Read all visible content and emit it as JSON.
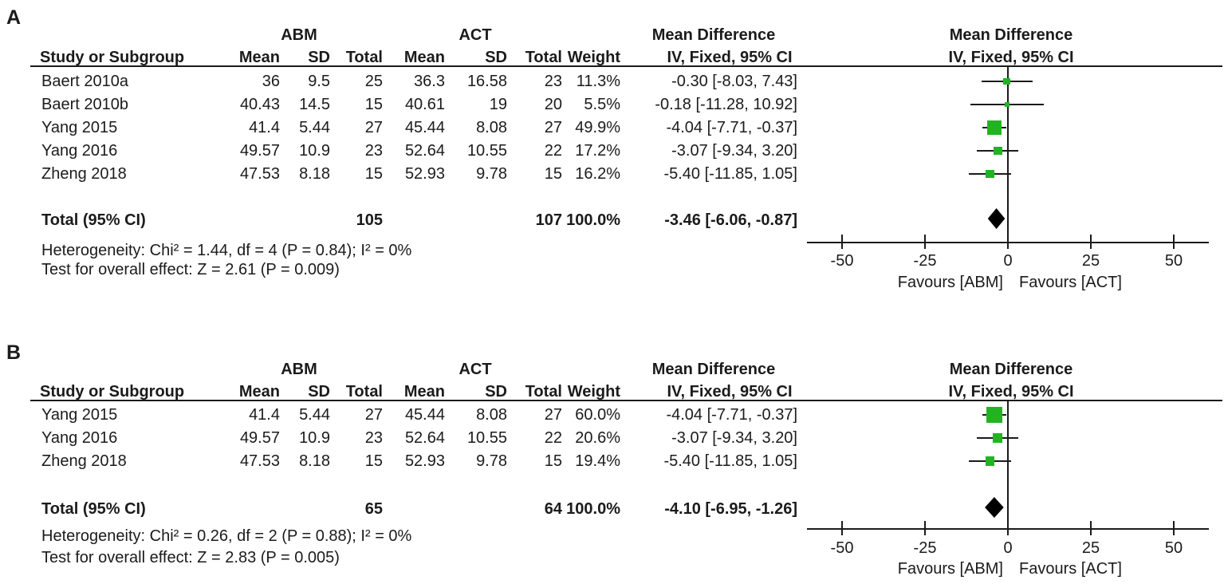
{
  "figure": {
    "panel_labels": [
      "A",
      "B"
    ],
    "marker_color": "#21b421",
    "diamond_color": "#000000",
    "line_color": "#1b1b1b"
  },
  "chart_data": [
    {
      "type": "forest",
      "panel_label": "A",
      "group_headers": [
        "ABM",
        "ACT"
      ],
      "columns": [
        "Study or Subgroup",
        "Mean",
        "SD",
        "Total",
        "Mean",
        "SD",
        "Total",
        "Weight",
        "IV, Fixed, 95% CI"
      ],
      "effect_col_header": "Mean Difference",
      "effect_col_subheader": "IV, Fixed, 95% CI",
      "plot_header": "Mean Difference",
      "plot_subheader": "IV, Fixed, 95% CI",
      "studies": [
        {
          "study": "Baert 2010a",
          "mean1": "36",
          "sd1": "9.5",
          "total1": "25",
          "mean2": "36.3",
          "sd2": "16.58",
          "total2": "23",
          "weight": "11.3%",
          "weight_pct": 11.3,
          "md": -0.3,
          "ci_low": -8.03,
          "ci_high": 7.43,
          "effect_label": "-0.30 [-8.03, 7.43]"
        },
        {
          "study": "Baert 2010b",
          "mean1": "40.43",
          "sd1": "14.5",
          "total1": "15",
          "mean2": "40.61",
          "sd2": "19",
          "total2": "20",
          "weight": "5.5%",
          "weight_pct": 5.5,
          "md": -0.18,
          "ci_low": -11.28,
          "ci_high": 10.92,
          "effect_label": "-0.18 [-11.28, 10.92]"
        },
        {
          "study": "Yang 2015",
          "mean1": "41.4",
          "sd1": "5.44",
          "total1": "27",
          "mean2": "45.44",
          "sd2": "8.08",
          "total2": "27",
          "weight": "49.9%",
          "weight_pct": 49.9,
          "md": -4.04,
          "ci_low": -7.71,
          "ci_high": -0.37,
          "effect_label": "-4.04 [-7.71, -0.37]"
        },
        {
          "study": "Yang 2016",
          "mean1": "49.57",
          "sd1": "10.9",
          "total1": "23",
          "mean2": "52.64",
          "sd2": "10.55",
          "total2": "22",
          "weight": "17.2%",
          "weight_pct": 17.2,
          "md": -3.07,
          "ci_low": -9.34,
          "ci_high": 3.2,
          "effect_label": "-3.07 [-9.34, 3.20]"
        },
        {
          "study": "Zheng 2018",
          "mean1": "47.53",
          "sd1": "8.18",
          "total1": "15",
          "mean2": "52.93",
          "sd2": "9.78",
          "total2": "15",
          "weight": "16.2%",
          "weight_pct": 16.2,
          "md": -5.4,
          "ci_low": -11.85,
          "ci_high": 1.05,
          "effect_label": "-5.40 [-11.85, 1.05]"
        }
      ],
      "total_row": {
        "label": "Total (95% CI)",
        "total1": "105",
        "total2": "107",
        "weight": "100.0%",
        "md": -3.46,
        "ci_low": -6.06,
        "ci_high": -0.87,
        "effect_label": "-3.46 [-6.06, -0.87]"
      },
      "heterogeneity": "Heterogeneity: Chi² = 1.44, df = 4 (P = 0.84); I² = 0%",
      "overall_effect": "Test for overall effect: Z = 2.61 (P = 0.009)",
      "axis": {
        "ticks": [
          -50,
          -25,
          0,
          25,
          50
        ],
        "xlim": [
          -60,
          60
        ],
        "favours_left": "Favours [ABM]",
        "favours_right": "Favours [ACT]"
      }
    },
    {
      "type": "forest",
      "panel_label": "B",
      "group_headers": [
        "ABM",
        "ACT"
      ],
      "columns": [
        "Study or Subgroup",
        "Mean",
        "SD",
        "Total",
        "Mean",
        "SD",
        "Total",
        "Weight",
        "IV, Fixed, 95% CI"
      ],
      "effect_col_header": "Mean Difference",
      "effect_col_subheader": "IV, Fixed, 95% CI",
      "plot_header": "Mean Difference",
      "plot_subheader": "IV, Fixed, 95% CI",
      "studies": [
        {
          "study": "Yang 2015",
          "mean1": "41.4",
          "sd1": "5.44",
          "total1": "27",
          "mean2": "45.44",
          "sd2": "8.08",
          "total2": "27",
          "weight": "60.0%",
          "weight_pct": 60.0,
          "md": -4.04,
          "ci_low": -7.71,
          "ci_high": -0.37,
          "effect_label": "-4.04 [-7.71, -0.37]"
        },
        {
          "study": "Yang 2016",
          "mean1": "49.57",
          "sd1": "10.9",
          "total1": "23",
          "mean2": "52.64",
          "sd2": "10.55",
          "total2": "22",
          "weight": "20.6%",
          "weight_pct": 20.6,
          "md": -3.07,
          "ci_low": -9.34,
          "ci_high": 3.2,
          "effect_label": "-3.07 [-9.34, 3.20]"
        },
        {
          "study": "Zheng 2018",
          "mean1": "47.53",
          "sd1": "8.18",
          "total1": "15",
          "mean2": "52.93",
          "sd2": "9.78",
          "total2": "15",
          "weight": "19.4%",
          "weight_pct": 19.4,
          "md": -5.4,
          "ci_low": -11.85,
          "ci_high": 1.05,
          "effect_label": "-5.40 [-11.85, 1.05]"
        }
      ],
      "total_row": {
        "label": "Total (95% CI)",
        "total1": "65",
        "total2": "64",
        "weight": "100.0%",
        "md": -4.1,
        "ci_low": -6.95,
        "ci_high": -1.26,
        "effect_label": "-4.10 [-6.95, -1.26]"
      },
      "heterogeneity": "Heterogeneity: Chi² = 0.26, df = 2 (P = 0.88); I² = 0%",
      "overall_effect": "Test for overall effect: Z = 2.83 (P = 0.005)",
      "axis": {
        "ticks": [
          -50,
          -25,
          0,
          25,
          50
        ],
        "xlim": [
          -60,
          60
        ],
        "favours_left": "Favours [ABM]",
        "favours_right": "Favours [ACT]"
      }
    }
  ]
}
